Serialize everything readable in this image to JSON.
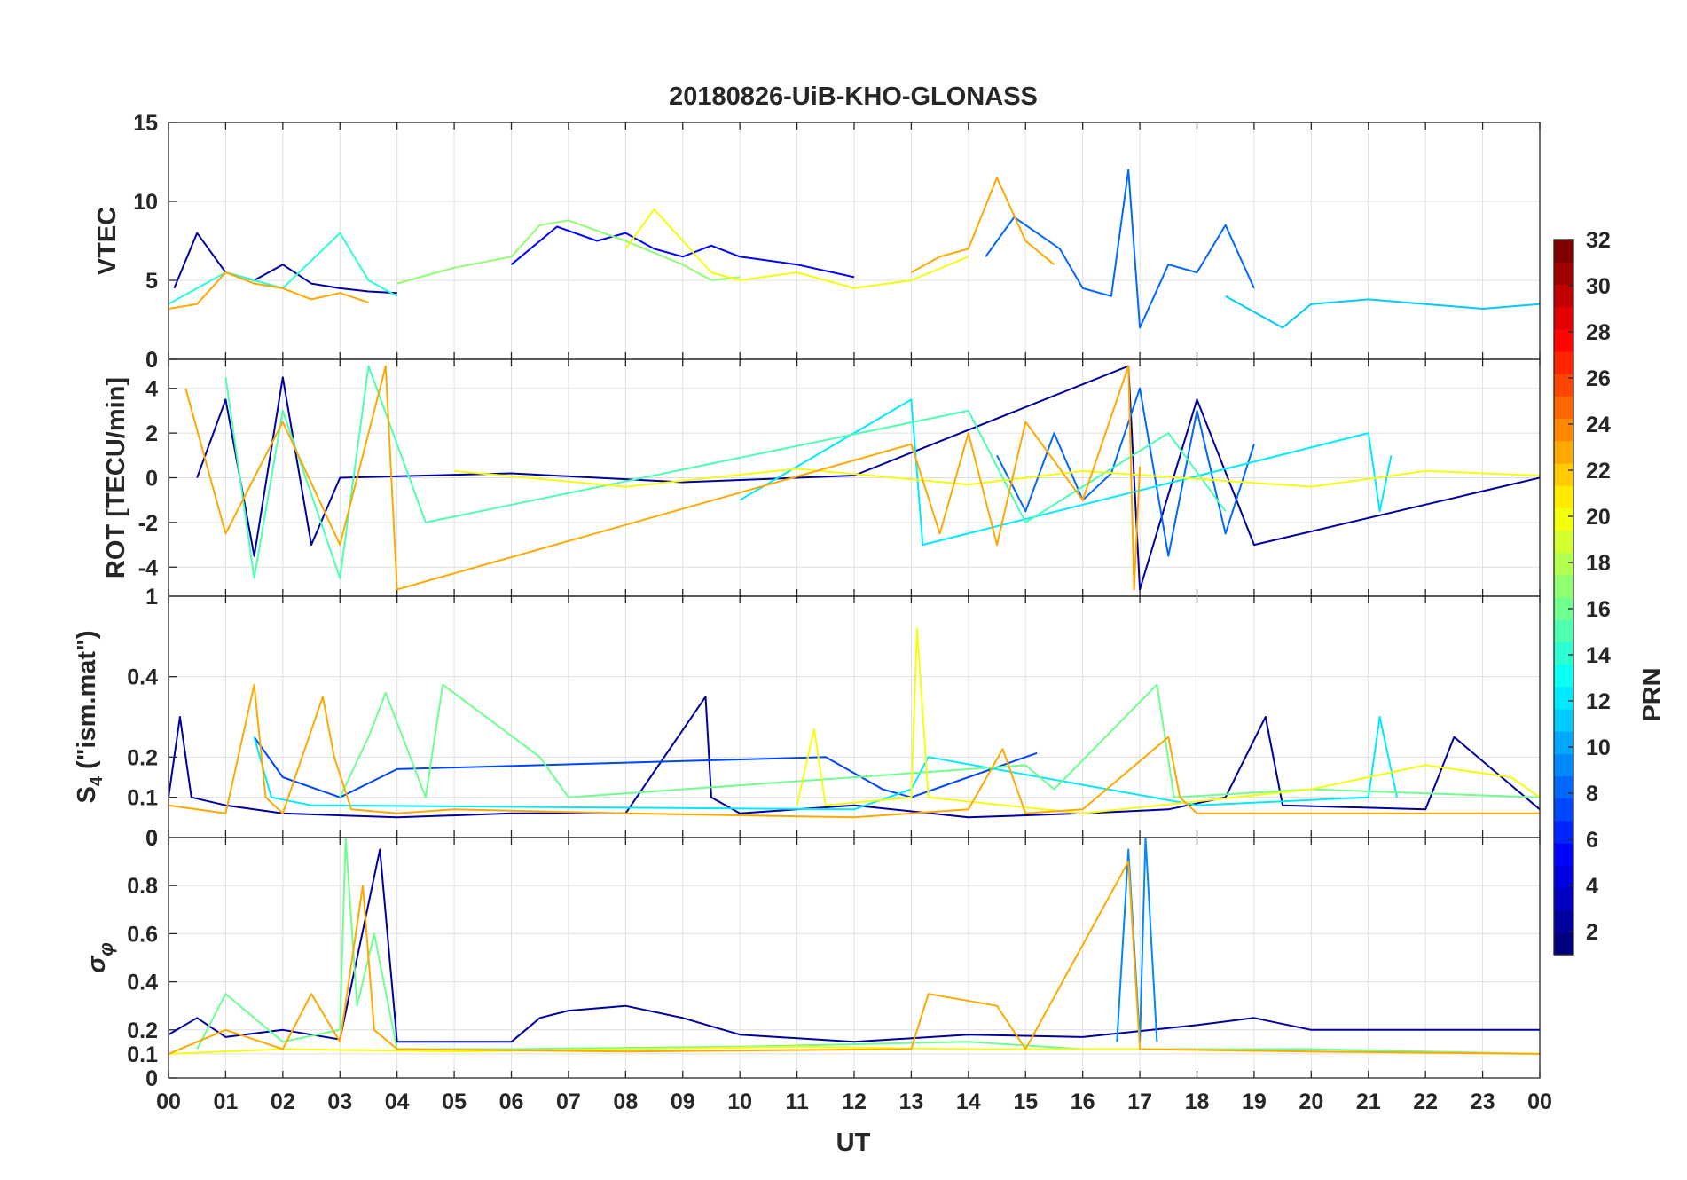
{
  "chart_data": [
    {
      "type": "line",
      "panel": "vtec",
      "title": "20180826-UiB-KHO-GLONASS",
      "ylabel": "VTEC",
      "ylim": [
        0,
        15
      ],
      "yticks": [
        0,
        5,
        10,
        15
      ],
      "ytick_labels": [
        "0",
        "5",
        "10",
        "15"
      ],
      "xlim": [
        0,
        24
      ],
      "grid": true,
      "series": [
        {
          "prn": 2,
          "x": [
            0.1,
            0.5,
            1.0,
            1.5,
            2.0,
            2.5,
            3.0,
            3.5,
            4.0
          ],
          "y": [
            4.5,
            8.0,
            5.5,
            5.0,
            6.0,
            4.8,
            4.5,
            4.3,
            4.2
          ]
        },
        {
          "prn": 5,
          "x": [
            6.0,
            6.8,
            7.5,
            8.0,
            8.5,
            9.0,
            9.5,
            10.0,
            11.0,
            12.0
          ],
          "y": [
            6.0,
            8.4,
            7.5,
            8.0,
            7.0,
            6.5,
            7.2,
            6.5,
            6.0,
            5.2
          ]
        },
        {
          "prn": 8,
          "x": [
            14.3,
            14.8,
            15.2,
            15.6,
            16.0,
            16.5,
            16.8,
            17.0,
            17.5,
            18.0,
            18.5,
            19.0
          ],
          "y": [
            6.5,
            9.0,
            8.0,
            7.0,
            4.5,
            4.0,
            12.0,
            2.0,
            6.0,
            5.5,
            8.5,
            4.5
          ]
        },
        {
          "prn": 11,
          "x": [
            18.5,
            19.0,
            19.5,
            20.0,
            21.0,
            22.0,
            23.0,
            24.0
          ],
          "y": [
            4.0,
            3.0,
            2.0,
            3.5,
            3.8,
            3.5,
            3.2,
            3.5
          ]
        },
        {
          "prn": 14,
          "x": [
            0.0,
            1.0,
            2.0,
            3.0,
            3.5,
            4.0
          ],
          "y": [
            3.5,
            5.5,
            4.5,
            8.0,
            5.0,
            4.0
          ]
        },
        {
          "prn": 17,
          "x": [
            4.0,
            5.0,
            6.0,
            6.5,
            7.0,
            8.0,
            9.0,
            9.5,
            10.0
          ],
          "y": [
            4.8,
            5.8,
            6.5,
            8.5,
            8.8,
            7.5,
            6.0,
            5.0,
            5.2
          ]
        },
        {
          "prn": 20,
          "x": [
            8.0,
            8.5,
            9.0,
            9.5,
            10.0,
            11.0,
            12.0,
            13.0,
            14.0
          ],
          "y": [
            7.0,
            9.5,
            7.5,
            5.5,
            5.0,
            5.5,
            4.5,
            5.0,
            6.5
          ]
        },
        {
          "prn": 23,
          "x": [
            0.0,
            0.5,
            1.0,
            1.5,
            2.0,
            2.5,
            3.0,
            3.5
          ],
          "y": [
            3.2,
            3.5,
            5.5,
            4.8,
            4.5,
            3.8,
            4.2,
            3.6
          ]
        },
        {
          "prn": 23,
          "x": [
            13.0,
            13.5,
            14.0,
            14.5,
            15.0,
            15.5
          ],
          "y": [
            5.5,
            6.5,
            7.0,
            11.5,
            7.5,
            6.0
          ]
        }
      ]
    },
    {
      "type": "line",
      "panel": "rot",
      "ylabel": "ROT [TECU/min]",
      "ylim": [
        -5.3,
        5.3
      ],
      "yticks": [
        -4,
        -2,
        0,
        2,
        4
      ],
      "ytick_labels": [
        "-4",
        "-2",
        "0",
        "2",
        "4"
      ],
      "ytop_label": "0",
      "xlim": [
        0,
        24
      ],
      "grid": true,
      "series": [
        {
          "prn": 2,
          "x": [
            0.5,
            1.0,
            1.5,
            2.0,
            2.5,
            3.0,
            6.0,
            9.0,
            12.0,
            16.8,
            17.0,
            18.0,
            19.0,
            24.0
          ],
          "y": [
            0,
            3.5,
            -3.5,
            4.5,
            -3.0,
            0,
            0.2,
            -0.2,
            0.1,
            5.0,
            -5.0,
            3.5,
            -3.0,
            0
          ]
        },
        {
          "prn": 8,
          "x": [
            14.5,
            15.0,
            15.5,
            16.0,
            16.5,
            17.0,
            17.5,
            18.0,
            18.5,
            19.0
          ],
          "y": [
            1.0,
            -1.5,
            2.0,
            -1.0,
            0.2,
            4.0,
            -3.5,
            3.0,
            -2.5,
            1.5
          ]
        },
        {
          "prn": 12,
          "x": [
            10.0,
            13.0,
            13.2,
            21.0,
            21.2,
            21.4
          ],
          "y": [
            -1.0,
            3.5,
            -3.0,
            2.0,
            -1.5,
            1.0
          ]
        },
        {
          "prn": 15,
          "x": [
            1.0,
            1.5,
            2.0,
            3.0,
            3.5,
            4.5,
            14.0,
            15.0,
            17.5,
            18.5
          ],
          "y": [
            4.5,
            -4.5,
            3.0,
            -4.5,
            5.0,
            -2.0,
            3.0,
            -2.0,
            2.0,
            -1.5
          ]
        },
        {
          "prn": 20,
          "x": [
            5.0,
            8.0,
            11.0,
            14.0,
            16.0,
            20.0,
            22.0,
            24.0
          ],
          "y": [
            0.3,
            -0.4,
            0.4,
            -0.3,
            0.3,
            -0.4,
            0.3,
            0.1
          ]
        },
        {
          "prn": 23,
          "x": [
            0.3,
            1.0,
            2.0,
            3.0,
            3.8,
            4.0,
            13.0,
            13.5,
            14.0,
            14.5,
            15.0,
            16.0,
            16.8,
            16.9,
            17.0
          ],
          "y": [
            4.0,
            -2.5,
            2.5,
            -3.0,
            5.0,
            -5.0,
            1.5,
            -2.5,
            2.0,
            -3.0,
            2.5,
            -1.0,
            5.0,
            -5.0,
            0.5
          ]
        }
      ]
    },
    {
      "type": "line",
      "panel": "s4",
      "ylabel": "S_4 (\"ism.mat\")",
      "ylabel_parts": [
        "S",
        "4",
        " (\"ism.mat\")"
      ],
      "ylim": [
        0,
        0.6
      ],
      "yticks": [
        0.1,
        0.2,
        0.4
      ],
      "ytick_labels": [
        "0.1",
        "0.2",
        "0.4"
      ],
      "ytop_label": "1",
      "ybottom_label": "0",
      "xlim": [
        0,
        24
      ],
      "grid": true,
      "series": [
        {
          "prn": 2,
          "x": [
            0.0,
            0.2,
            0.4,
            1.0,
            2.0,
            4.0,
            6.0,
            8.0,
            9.4,
            9.5,
            10.0,
            12.0,
            14.0,
            16.0,
            17.5,
            18.5,
            19.2,
            19.5,
            22.0,
            22.5,
            24.0
          ],
          "y": [
            0.1,
            0.3,
            0.1,
            0.08,
            0.06,
            0.05,
            0.06,
            0.06,
            0.35,
            0.1,
            0.06,
            0.08,
            0.05,
            0.06,
            0.07,
            0.1,
            0.3,
            0.08,
            0.07,
            0.25,
            0.07
          ]
        },
        {
          "prn": 7,
          "x": [
            1.5,
            2.0,
            3.0,
            4.0,
            11.5,
            12.5,
            13.0,
            14.0,
            15.2
          ],
          "y": [
            0.25,
            0.15,
            0.1,
            0.17,
            0.2,
            0.12,
            0.1,
            0.15,
            0.21
          ]
        },
        {
          "prn": 12,
          "x": [
            1.5,
            1.8,
            2.5,
            12.0,
            13.0,
            13.3,
            18.0,
            19.5,
            21.0,
            21.2,
            21.5
          ],
          "y": [
            0.25,
            0.1,
            0.08,
            0.07,
            0.12,
            0.2,
            0.08,
            0.09,
            0.1,
            0.3,
            0.1
          ]
        },
        {
          "prn": 16,
          "x": [
            3.0,
            3.5,
            3.8,
            4.5,
            4.8,
            6.5,
            7.0,
            15.0,
            15.5,
            17.3,
            17.6,
            20.0,
            24.0
          ],
          "y": [
            0.1,
            0.25,
            0.36,
            0.1,
            0.38,
            0.2,
            0.1,
            0.18,
            0.12,
            0.38,
            0.1,
            0.12,
            0.1
          ]
        },
        {
          "prn": 20,
          "x": [
            11.0,
            11.3,
            11.5,
            13.0,
            13.1,
            13.3,
            16.0,
            20.0,
            22.0,
            23.5,
            24.0
          ],
          "y": [
            0.08,
            0.27,
            0.08,
            0.1,
            0.52,
            0.1,
            0.06,
            0.12,
            0.18,
            0.15,
            0.1
          ]
        },
        {
          "prn": 23,
          "x": [
            0.0,
            1.0,
            1.5,
            1.7,
            2.0,
            2.7,
            2.9,
            3.2,
            4.0,
            5.0,
            8.0,
            12.0,
            13.0,
            14.0,
            14.6,
            15.0,
            16.0,
            17.5,
            17.7,
            18.0,
            24.0
          ],
          "y": [
            0.08,
            0.06,
            0.38,
            0.1,
            0.06,
            0.35,
            0.2,
            0.07,
            0.06,
            0.07,
            0.06,
            0.05,
            0.06,
            0.07,
            0.22,
            0.06,
            0.07,
            0.25,
            0.1,
            0.06,
            0.06
          ]
        }
      ]
    },
    {
      "type": "line",
      "panel": "sigma_phi",
      "ylabel": "σ_φ",
      "ylabel_parts": [
        "σ",
        "φ"
      ],
      "ylim": [
        0,
        1
      ],
      "yticks": [
        0,
        0.1,
        0.2,
        0.4,
        0.6,
        0.8
      ],
      "ytick_labels": [
        "0",
        "0.1",
        "0.2",
        "0.4",
        "0.6",
        "0.8"
      ],
      "ytop_label": "0",
      "xlim": [
        0,
        24
      ],
      "xlabel": "UT",
      "xticks": [
        0,
        1,
        2,
        3,
        4,
        5,
        6,
        7,
        8,
        9,
        10,
        11,
        12,
        13,
        14,
        15,
        16,
        17,
        18,
        19,
        20,
        21,
        22,
        23,
        24
      ],
      "xtick_labels": [
        "00",
        "01",
        "02",
        "03",
        "04",
        "05",
        "06",
        "07",
        "08",
        "09",
        "10",
        "11",
        "12",
        "13",
        "14",
        "15",
        "16",
        "17",
        "18",
        "19",
        "20",
        "21",
        "22",
        "23",
        "00"
      ],
      "grid": true,
      "series": [
        {
          "prn": 2,
          "x": [
            0.0,
            0.5,
            1.0,
            2.0,
            3.0,
            3.7,
            4.0,
            6.0,
            6.5,
            7.0,
            8.0,
            9.0,
            10.0,
            12.0,
            14.0,
            16.0,
            18.0,
            19.0,
            20.0,
            22.0,
            24.0
          ],
          "y": [
            0.18,
            0.25,
            0.17,
            0.2,
            0.16,
            0.95,
            0.15,
            0.15,
            0.25,
            0.28,
            0.3,
            0.25,
            0.18,
            0.15,
            0.18,
            0.17,
            0.22,
            0.25,
            0.2,
            0.2,
            0.2
          ]
        },
        {
          "prn": 9,
          "x": [
            16.6,
            16.8,
            17.0,
            17.1,
            17.3
          ],
          "y": [
            0.15,
            0.95,
            0.15,
            1.0,
            0.15
          ]
        },
        {
          "prn": 16,
          "x": [
            0.5,
            1.0,
            2.0,
            3.0,
            3.1,
            3.3,
            3.6,
            4.0,
            6.0,
            10.0,
            14.0,
            16.0,
            20.0,
            24.0
          ],
          "y": [
            0.12,
            0.35,
            0.15,
            0.2,
            1.0,
            0.3,
            0.6,
            0.12,
            0.12,
            0.13,
            0.15,
            0.12,
            0.12,
            0.1
          ]
        },
        {
          "prn": 20,
          "x": [
            0.0,
            2.0,
            5.0,
            8.0,
            11.0,
            14.0,
            17.0,
            20.0,
            24.0
          ],
          "y": [
            0.1,
            0.12,
            0.11,
            0.12,
            0.13,
            0.12,
            0.12,
            0.11,
            0.1
          ]
        },
        {
          "prn": 23,
          "x": [
            0.0,
            1.0,
            2.0,
            2.5,
            3.0,
            3.4,
            3.6,
            4.0,
            8.0,
            13.0,
            13.3,
            14.5,
            15.0,
            16.8,
            17.0,
            20.0,
            24.0
          ],
          "y": [
            0.1,
            0.2,
            0.12,
            0.35,
            0.15,
            0.8,
            0.2,
            0.12,
            0.11,
            0.12,
            0.35,
            0.3,
            0.12,
            0.9,
            0.12,
            0.11,
            0.1
          ]
        }
      ]
    }
  ],
  "colorbar": {
    "label": "PRN",
    "min": 1,
    "max": 32,
    "ticks": [
      2,
      4,
      6,
      8,
      10,
      12,
      14,
      16,
      18,
      20,
      22,
      24,
      26,
      28,
      30,
      32
    ],
    "tick_labels": [
      "2",
      "4",
      "6",
      "8",
      "10",
      "12",
      "14",
      "16",
      "18",
      "20",
      "22",
      "24",
      "26",
      "28",
      "30",
      "32"
    ],
    "colormap": "jet"
  },
  "colors": {
    "grid": "#dfdfdf",
    "axis": "#262626",
    "background": "#ffffff"
  }
}
